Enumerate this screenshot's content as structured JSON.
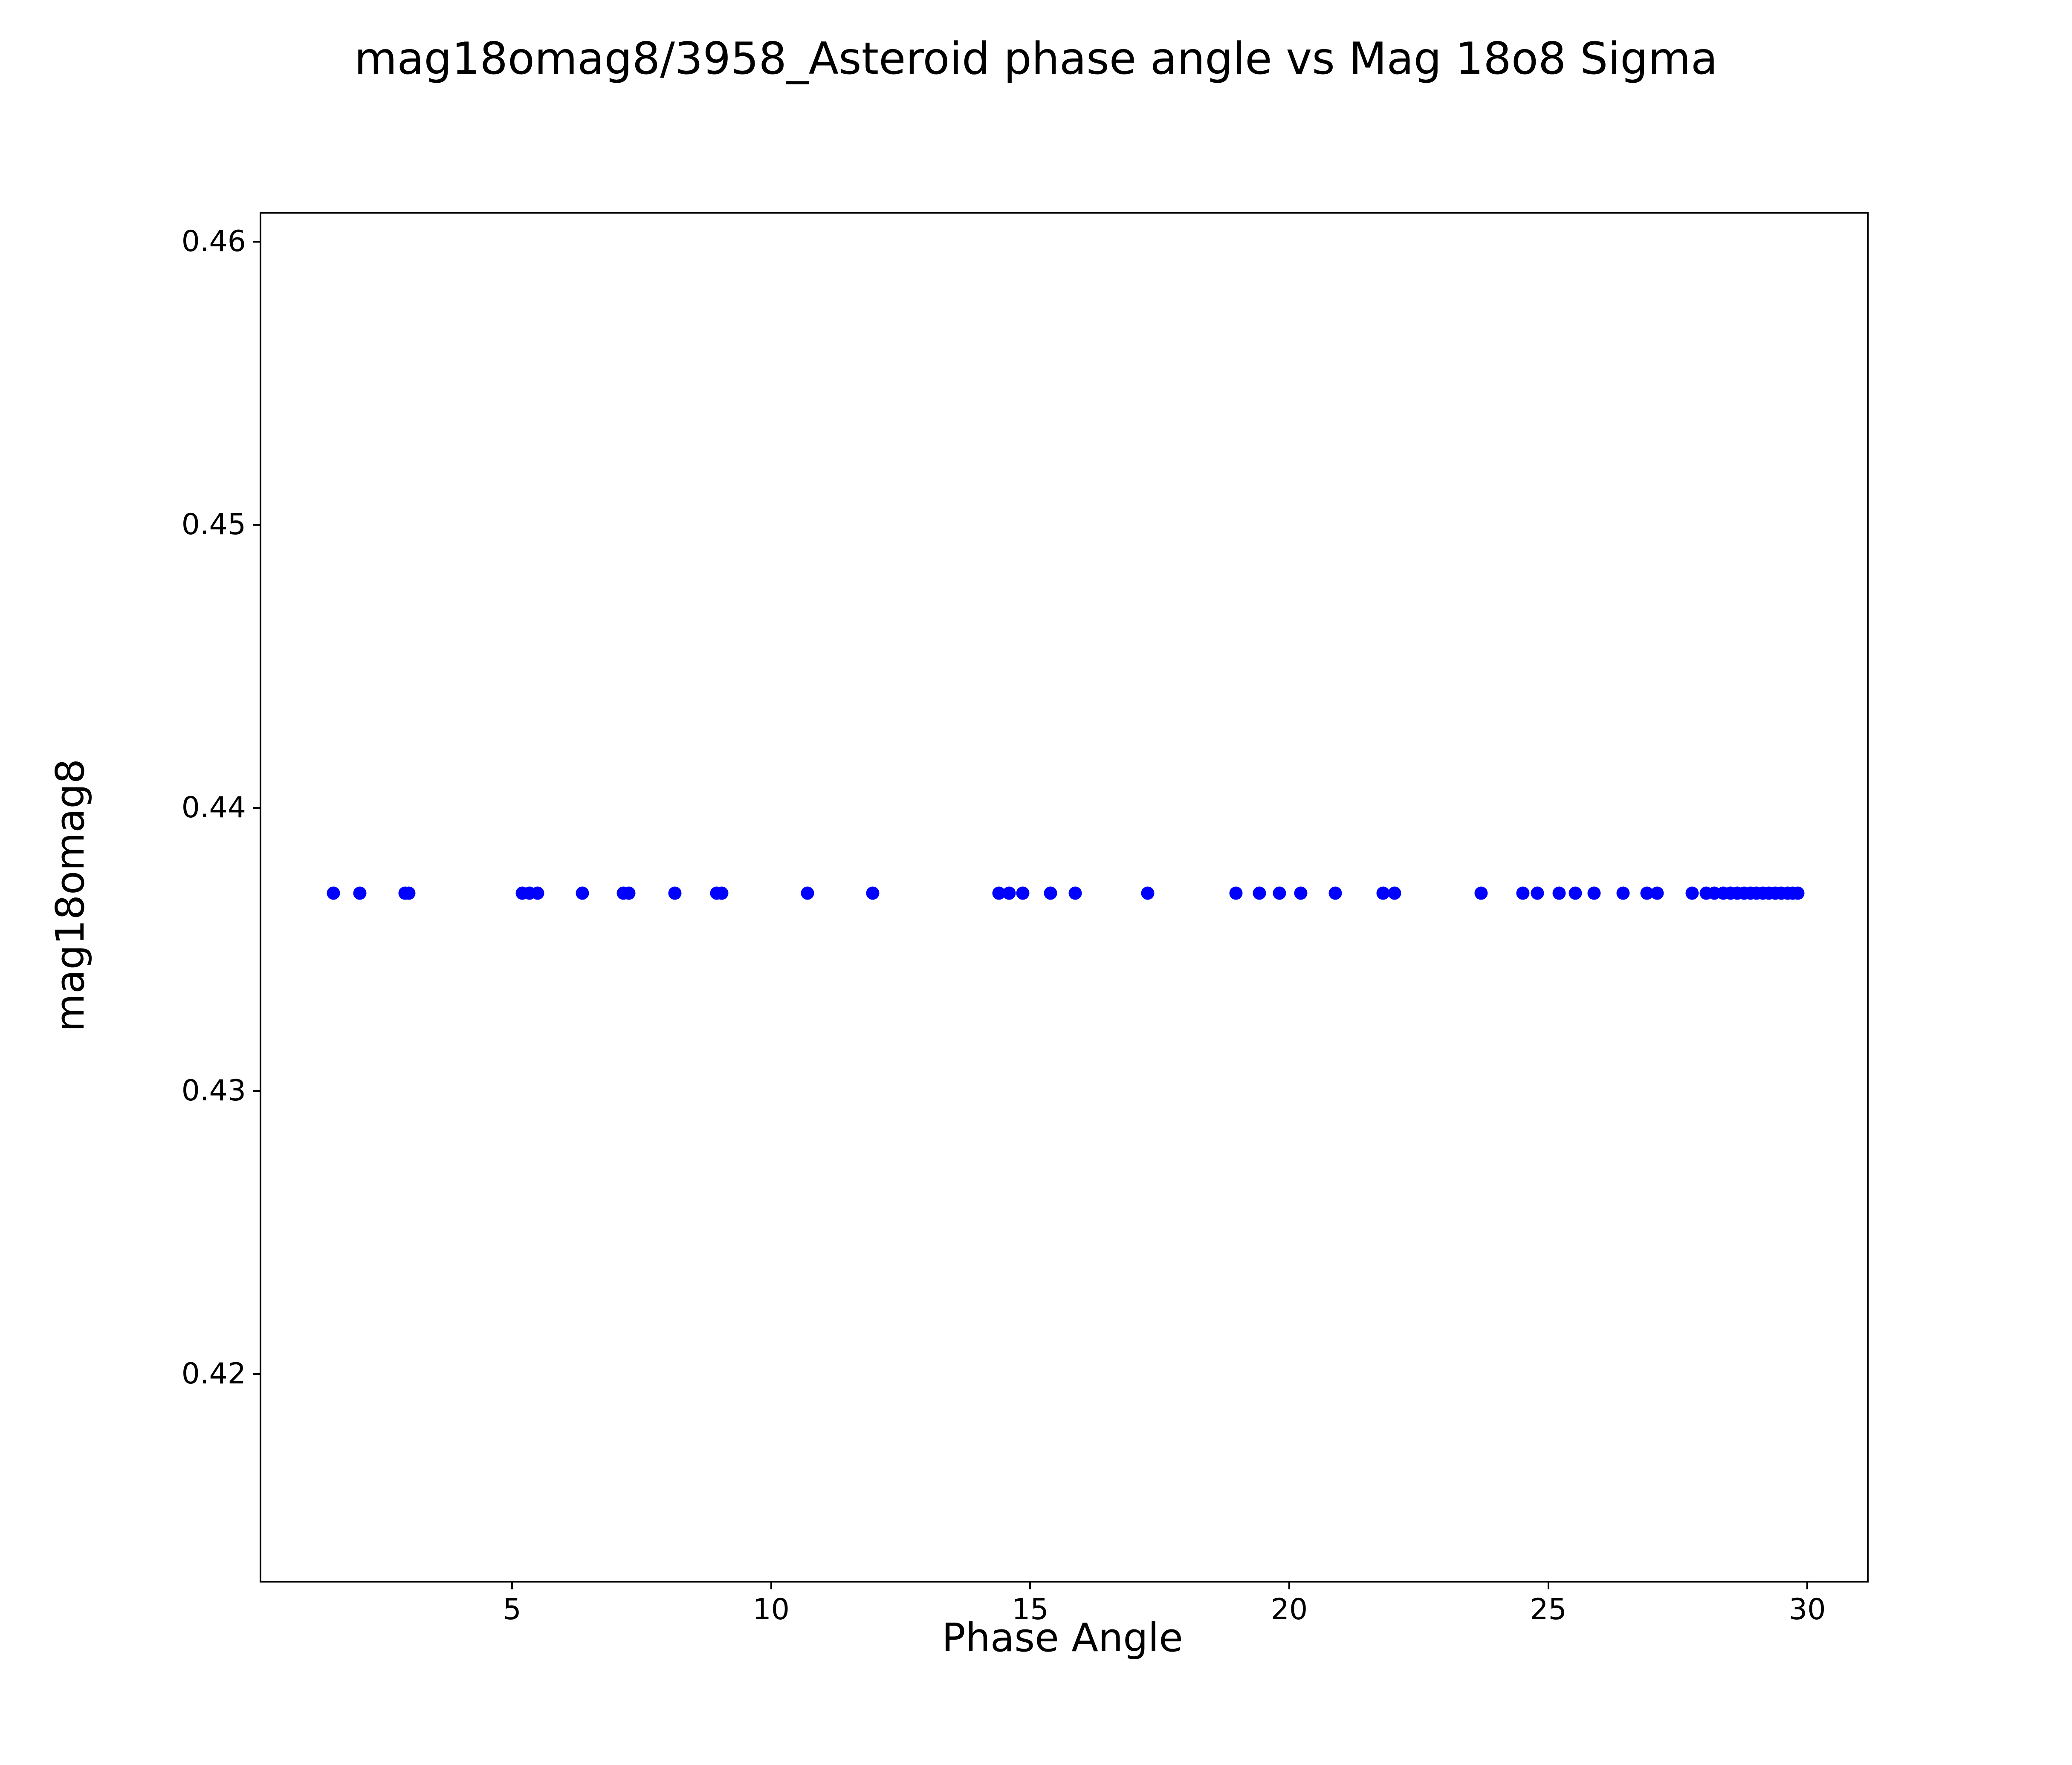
{
  "title": "mag18omag8/3958_Asteroid phase angle vs Mag 18o8 Sigma",
  "chart_data": {
    "type": "scatter",
    "title": "mag18omag8/3958_Asteroid phase angle vs Mag 18o8 Sigma",
    "xlabel": "Phase Angle",
    "ylabel": "mag18omag8",
    "xlim": [
      0.16,
      31.15
    ],
    "ylim": [
      0.4127,
      0.461
    ],
    "grid": false,
    "legend": null,
    "marker_color": "#0000ff",
    "marker_diameter_px": 31,
    "x_ticks": [
      {
        "v": 5,
        "label": "5"
      },
      {
        "v": 10,
        "label": "10"
      },
      {
        "v": 15,
        "label": "15"
      },
      {
        "v": 20,
        "label": "20"
      },
      {
        "v": 25,
        "label": "25"
      },
      {
        "v": 30,
        "label": "30"
      }
    ],
    "y_ticks": [
      {
        "v": 0.42,
        "label": "0.42"
      },
      {
        "v": 0.43,
        "label": "0.43"
      },
      {
        "v": 0.44,
        "label": "0.44"
      },
      {
        "v": 0.45,
        "label": "0.45"
      },
      {
        "v": 0.46,
        "label": "0.46"
      }
    ],
    "y_value": 0.437,
    "x": [
      1.55,
      2.06,
      2.93,
      3.01,
      5.2,
      5.34,
      5.49,
      6.36,
      7.15,
      7.25,
      8.14,
      8.95,
      9.05,
      10.7,
      11.96,
      14.4,
      14.59,
      14.86,
      15.39,
      15.87,
      17.27,
      18.97,
      19.42,
      19.81,
      20.22,
      20.89,
      21.81,
      22.03,
      23.7,
      24.51,
      24.79,
      25.21,
      25.52,
      25.88,
      26.44,
      26.9,
      27.1,
      27.78,
      28.05,
      28.2,
      28.38,
      28.52,
      28.65,
      28.78,
      28.9,
      29.02,
      29.14,
      29.26,
      29.38,
      29.5,
      29.62,
      29.72,
      29.82
    ]
  }
}
